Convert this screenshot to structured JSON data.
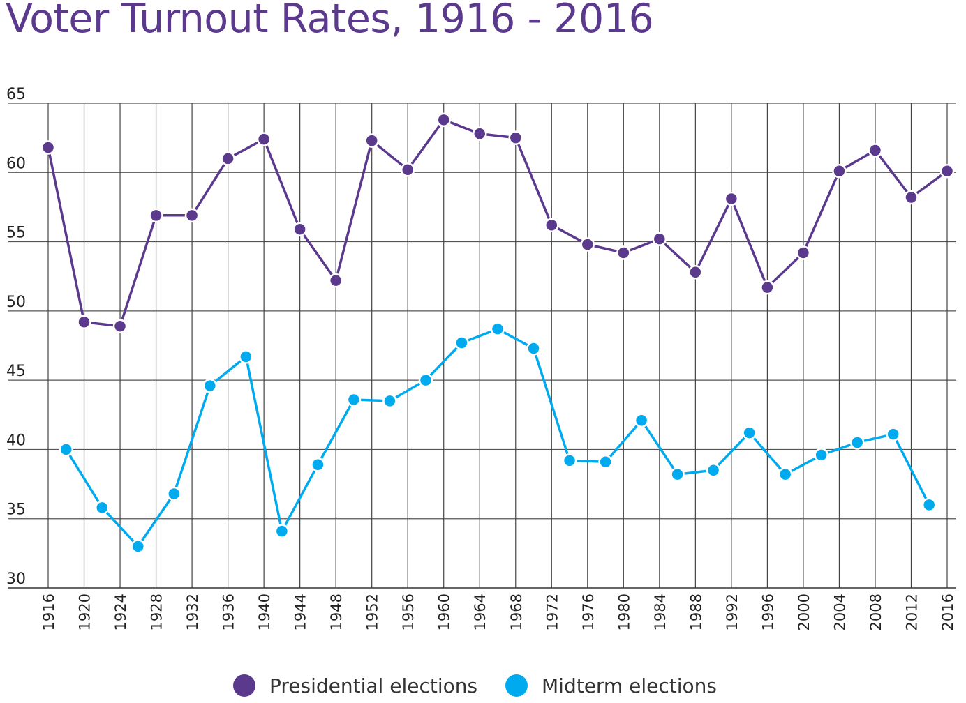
{
  "chart_data": {
    "type": "line",
    "title": "Voter Turnout Rates, 1916 - 2016",
    "xlabel": "",
    "ylabel": "",
    "ylim": [
      30,
      65
    ],
    "xlim": [
      1916,
      2016
    ],
    "grid": true,
    "legend_position": "bottom-center",
    "y_ticks": [
      "30",
      "35",
      "40",
      "45",
      "50",
      "55",
      "60",
      "65"
    ],
    "x_ticks": [
      "1916",
      "1920",
      "1924",
      "1928",
      "1932",
      "1936",
      "1940",
      "1944",
      "1948",
      "1952",
      "1956",
      "1960",
      "1964",
      "1968",
      "1972",
      "1976",
      "1980",
      "1984",
      "1988",
      "1992",
      "1996",
      "2000",
      "2004",
      "2008",
      "2012",
      "2016"
    ],
    "series": [
      {
        "name": "Presidential elections",
        "color": "#5b3a8e",
        "x": [
          1916,
          1920,
          1924,
          1928,
          1932,
          1936,
          1940,
          1944,
          1948,
          1952,
          1956,
          1960,
          1964,
          1968,
          1972,
          1976,
          1980,
          1984,
          1988,
          1992,
          1996,
          2000,
          2004,
          2008,
          2012,
          2016
        ],
        "y": [
          61.8,
          49.2,
          48.9,
          56.9,
          56.9,
          61.0,
          62.4,
          55.9,
          52.2,
          62.3,
          60.2,
          63.8,
          62.8,
          62.5,
          56.2,
          54.8,
          54.2,
          55.2,
          52.8,
          58.1,
          51.7,
          54.2,
          60.1,
          61.6,
          58.2,
          60.1
        ]
      },
      {
        "name": "Midterm elections",
        "color": "#00aaee",
        "x": [
          1918,
          1922,
          1926,
          1930,
          1934,
          1938,
          1942,
          1946,
          1950,
          1954,
          1958,
          1962,
          1966,
          1970,
          1974,
          1978,
          1982,
          1986,
          1990,
          1994,
          1998,
          2002,
          2006,
          2010,
          2014
        ],
        "y": [
          40.0,
          35.8,
          33.0,
          36.8,
          44.6,
          46.7,
          34.1,
          38.9,
          43.6,
          43.5,
          45.0,
          47.7,
          48.7,
          47.3,
          39.2,
          39.1,
          42.1,
          38.2,
          38.5,
          41.2,
          38.2,
          39.6,
          40.5,
          41.1,
          36.0
        ]
      }
    ]
  }
}
